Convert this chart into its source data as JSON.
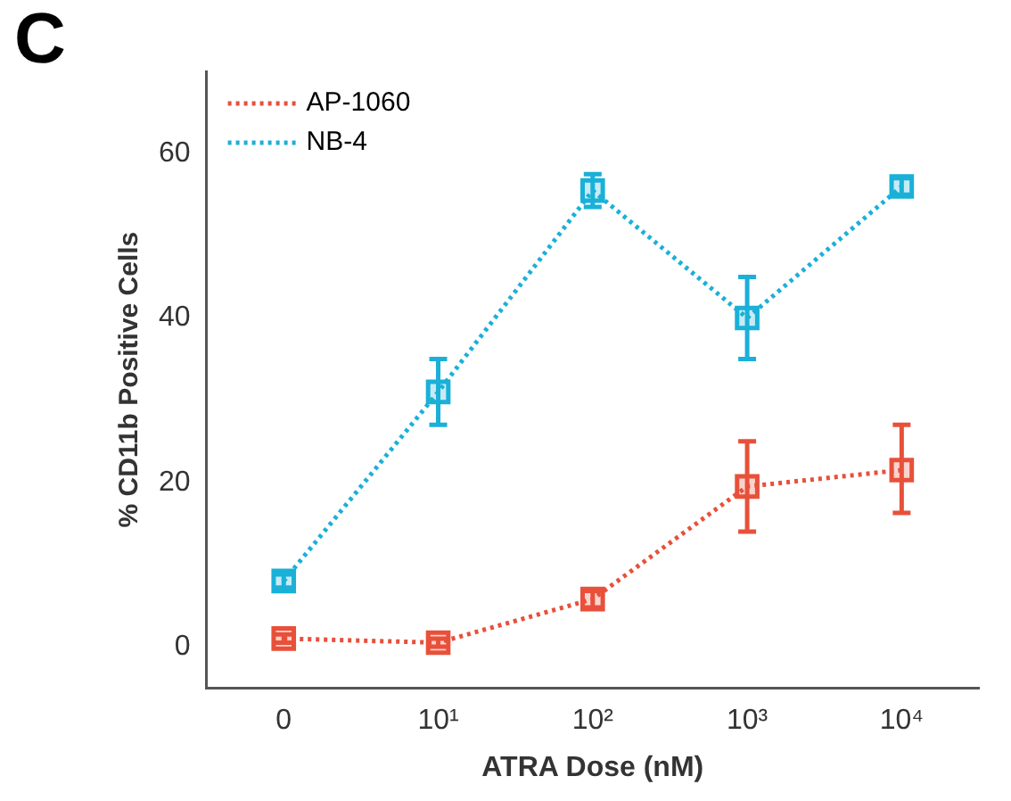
{
  "chart_data": {
    "type": "line",
    "annotations": [
      "C"
    ],
    "xlabel": "ATRA Dose (nM)",
    "ylabel": "% CD11b Positive Cells",
    "categories": [
      "0",
      "10¹",
      "10²",
      "10³",
      "10⁴"
    ],
    "series": [
      {
        "name": "AP-1060",
        "color": "#e8503a",
        "values": [
          1,
          0.5,
          5.8,
          19.5,
          21.5
        ],
        "errors": [
          0.5,
          0.5,
          1,
          [
            14,
            25
          ],
          [
            16.3,
            27
          ]
        ]
      },
      {
        "name": "NB-4",
        "color": "#1ab0d8",
        "values": [
          8,
          31,
          55.5,
          40,
          56
        ],
        "errors": [
          0.8,
          [
            27,
            35
          ],
          [
            53.5,
            57.5
          ],
          [
            35,
            45
          ],
          1
        ]
      }
    ],
    "ylim": [
      -5,
      70
    ],
    "yticks": [
      0,
      20,
      40,
      60
    ],
    "grid": false,
    "legend": "top left",
    "marker": "square",
    "line_style": "dotted"
  }
}
